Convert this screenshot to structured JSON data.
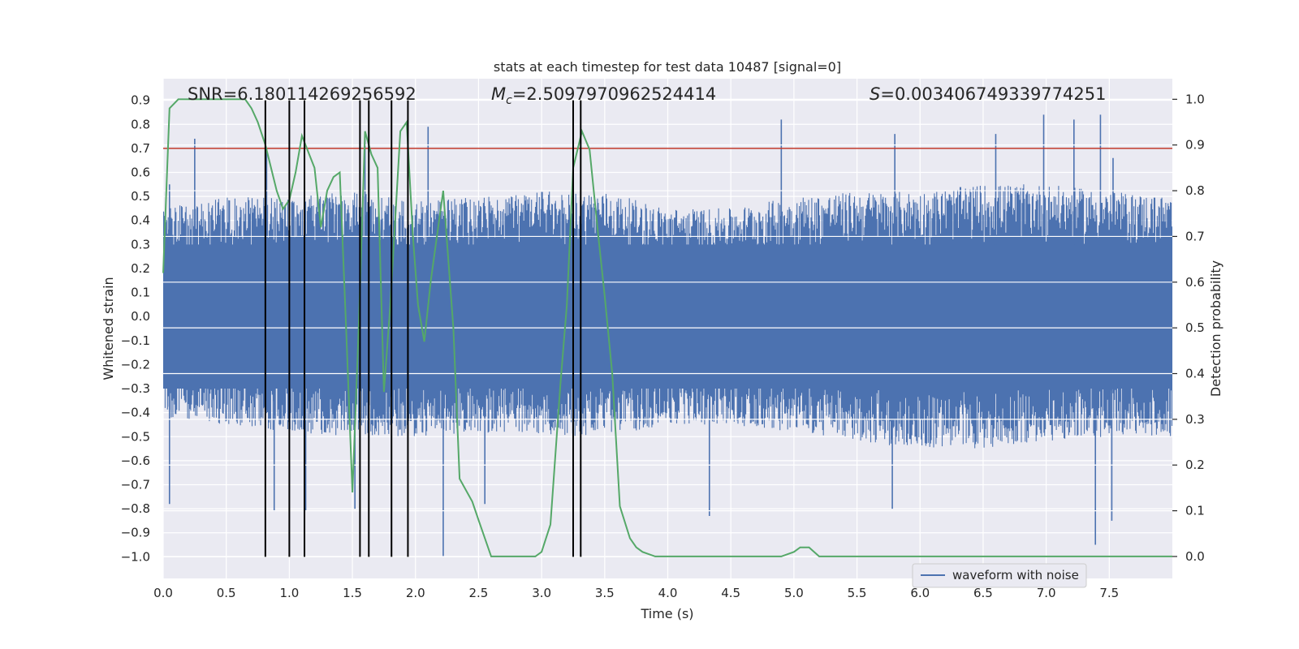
{
  "chart_data": {
    "type": "line",
    "title": "stats at each timestep for test data 10487 [signal=0]",
    "xlabel": "Time (s)",
    "ylabel_left": "Whitened strain",
    "ylabel_right": "Detection probability",
    "xlim": [
      0,
      8
    ],
    "ylim_left": [
      -1.09,
      0.99
    ],
    "ylim_right": [
      -0.048,
      1.045
    ],
    "x_ticks": [
      "0.0",
      "0.5",
      "1.0",
      "1.5",
      "2.0",
      "2.5",
      "3.0",
      "3.5",
      "4.0",
      "4.5",
      "5.0",
      "5.5",
      "6.0",
      "6.5",
      "7.0",
      "7.5"
    ],
    "y_ticks_left": [
      "0.9",
      "0.8",
      "0.7",
      "0.6",
      "0.5",
      "0.4",
      "0.3",
      "0.2",
      "0.1",
      "0.0",
      "-0.1",
      "-0.2",
      "-0.3",
      "-0.4",
      "-0.5",
      "-0.6",
      "-0.7",
      "-0.8",
      "-0.9",
      "-1.0"
    ],
    "y_ticks_right": [
      "1.0",
      "0.9",
      "0.8",
      "0.7",
      "0.6",
      "0.5",
      "0.4",
      "0.3",
      "0.2",
      "0.1",
      "0.0"
    ],
    "grid": true,
    "legend_placement": "lower-right",
    "annotations": {
      "snr": "SNR=6.180114269256592",
      "mc_symbol": "M",
      "mc_sub": "c",
      "mc_value": "=2.5097970962524414",
      "s_symbol": "S",
      "s_value": "=0.003406749339774251"
    },
    "threshold": {
      "value": 0.7,
      "axis": "left",
      "color": "#c0392b"
    },
    "vlines": {
      "x": [
        0.81,
        1.0,
        1.12,
        1.56,
        1.63,
        1.81,
        1.94,
        3.25,
        3.31
      ],
      "y_range": [
        -1.0,
        0.9
      ],
      "color": "#000000"
    },
    "series": [
      {
        "name": "waveform with noise",
        "color": "#4c72b0",
        "axis": "left",
        "envelope": {
          "x": [
            0.0,
            0.5,
            1.0,
            1.5,
            2.0,
            2.5,
            3.0,
            3.5,
            4.0,
            4.5,
            5.0,
            5.5,
            6.0,
            6.5,
            7.0,
            7.5,
            8.0
          ],
          "upper": [
            0.45,
            0.5,
            0.5,
            0.52,
            0.48,
            0.5,
            0.52,
            0.52,
            0.45,
            0.45,
            0.5,
            0.52,
            0.52,
            0.55,
            0.55,
            0.52,
            0.5
          ],
          "lower": [
            -0.42,
            -0.45,
            -0.48,
            -0.5,
            -0.5,
            -0.48,
            -0.5,
            -0.5,
            -0.45,
            -0.45,
            -0.48,
            -0.52,
            -0.55,
            -0.55,
            -0.52,
            -0.5,
            -0.5
          ]
        },
        "peaks": {
          "x": [
            0.05,
            0.25,
            0.82,
            1.6,
            2.1,
            3.25,
            4.9,
            5.8,
            6.6,
            6.98,
            7.22,
            7.43,
            7.53
          ],
          "y": [
            0.55,
            0.74,
            0.7,
            0.76,
            0.79,
            0.73,
            0.82,
            0.76,
            0.76,
            0.84,
            0.82,
            0.84,
            0.66
          ]
        },
        "troughs": {
          "x": [
            0.05,
            0.88,
            1.13,
            1.52,
            2.22,
            2.55,
            4.33,
            5.78,
            7.39,
            7.52
          ],
          "y": [
            -0.78,
            -0.81,
            -0.81,
            -0.8,
            -1.0,
            -0.78,
            -0.83,
            -0.8,
            -0.95,
            -0.85
          ]
        }
      },
      {
        "name": "detection probability",
        "color": "#55a868",
        "axis": "right",
        "x": [
          0.0,
          0.05,
          0.12,
          0.3,
          0.5,
          0.65,
          0.7,
          0.75,
          0.81,
          0.9,
          0.95,
          1.0,
          1.05,
          1.1,
          1.2,
          1.25,
          1.3,
          1.35,
          1.4,
          1.45,
          1.5,
          1.55,
          1.6,
          1.65,
          1.7,
          1.75,
          1.8,
          1.88,
          1.93,
          1.98,
          2.02,
          2.07,
          2.12,
          2.22,
          2.3,
          2.35,
          2.45,
          2.5,
          2.6,
          2.8,
          2.9,
          2.95,
          3.0,
          3.07,
          3.15,
          3.2,
          3.25,
          3.32,
          3.38,
          3.45,
          3.5,
          3.56,
          3.62,
          3.7,
          3.75,
          3.8,
          3.9,
          4.0,
          4.5,
          4.9,
          5.0,
          5.05,
          5.12,
          5.2,
          5.5,
          5.75,
          6.0,
          6.5,
          7.0,
          7.4,
          7.6,
          8.0
        ],
        "y": [
          0.62,
          0.98,
          1.0,
          1.0,
          1.0,
          1.0,
          0.98,
          0.95,
          0.9,
          0.8,
          0.76,
          0.78,
          0.84,
          0.92,
          0.85,
          0.72,
          0.8,
          0.83,
          0.84,
          0.5,
          0.14,
          0.5,
          0.93,
          0.88,
          0.85,
          0.36,
          0.55,
          0.93,
          0.95,
          0.7,
          0.55,
          0.47,
          0.6,
          0.8,
          0.5,
          0.17,
          0.12,
          0.08,
          0.0,
          0.0,
          0.0,
          0.0,
          0.01,
          0.07,
          0.38,
          0.55,
          0.85,
          0.93,
          0.89,
          0.7,
          0.57,
          0.4,
          0.11,
          0.04,
          0.02,
          0.01,
          0.0,
          0.0,
          0.0,
          0.0,
          0.01,
          0.02,
          0.02,
          0.0,
          0.0,
          0.0,
          0.0,
          0.0,
          0.0,
          0.0,
          0.0,
          0.0
        ]
      }
    ]
  }
}
